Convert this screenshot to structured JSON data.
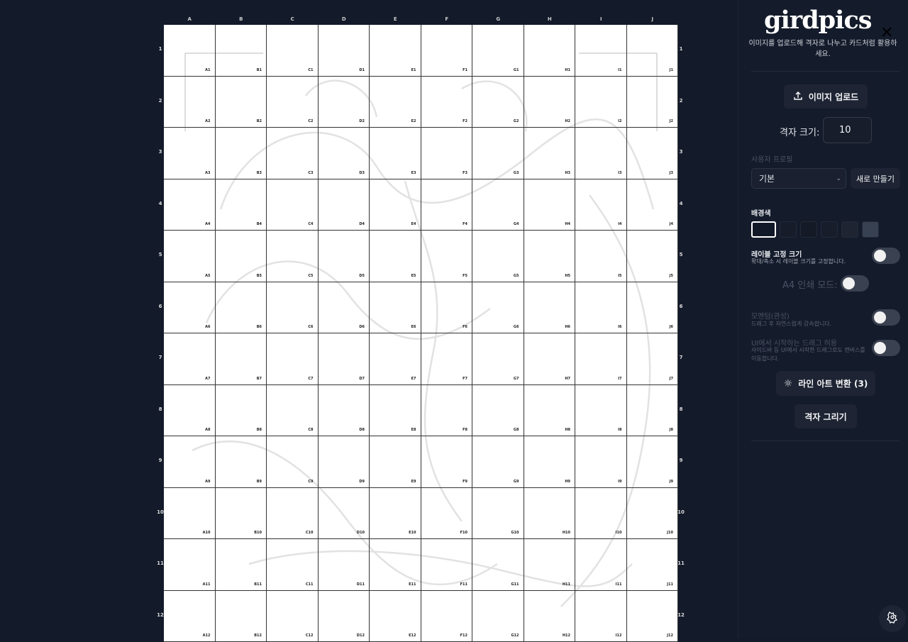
{
  "app": {
    "title": "girdpics",
    "subtitle": "이미지를 업로드해 격자로 나누고 카드처럼 활용하세요."
  },
  "grid": {
    "columns": [
      "A",
      "B",
      "C",
      "D",
      "E",
      "F",
      "G",
      "H",
      "I",
      "J"
    ],
    "rows": [
      "1",
      "2",
      "3",
      "4",
      "5",
      "6",
      "7",
      "8",
      "9",
      "10",
      "11",
      "12"
    ]
  },
  "sidebar": {
    "upload_label": "이미지 업로드",
    "grid_size_label": "격자 크기:",
    "grid_size_value": "10",
    "profile_label": "사용자 프로필",
    "profile_selected": "기본",
    "new_profile_label": "새로 만들기",
    "bg_color_label": "배경색",
    "bg_colors": [
      "#111827",
      "#161c2a",
      "#141a26",
      "#171d2b",
      "#1e2431",
      "#374151"
    ],
    "fixed_label": {
      "title": "레이블 고정 크기",
      "desc": "확대/축소 시 레이블 크기를 고정합니다.",
      "on": false
    },
    "a4_mode": {
      "title": "A4 인쇄 모드:",
      "on": false
    },
    "momentum": {
      "title": "모멘텀(관성)",
      "desc": "드래그 후 자연스럽게 감속합니다.",
      "on": false
    },
    "ui_drag": {
      "title": "UI에서 시작하는 드래그 허용",
      "desc": "사이드바 등 UI에서 시작한 드래그로도 캔버스를 이동합니다.",
      "on": false
    },
    "line_art_label": "라인 아트 변환 (3)",
    "draw_grid_label": "격자 그리기"
  }
}
